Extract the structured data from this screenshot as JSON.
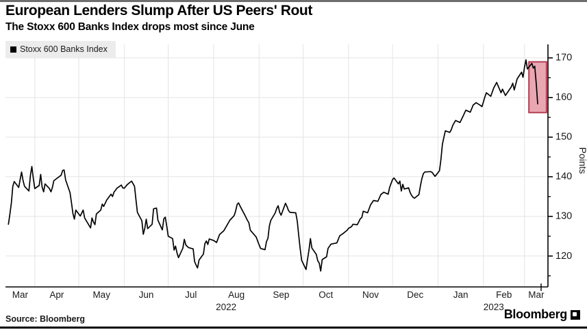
{
  "header": {
    "title": "European Lenders Slump After US Peers' Rout",
    "subtitle": "The Stoxx 600 Banks Index drops most since June"
  },
  "legend": {
    "label": "Stoxx 600 Banks Index"
  },
  "footer": {
    "source": "Source: Bloomberg",
    "brand": "Bloomberg"
  },
  "colors": {
    "line": "#000000",
    "grid": "#e4e4e4",
    "axis": "#000000",
    "highlight_fill": "#e9a7b2",
    "highlight_border": "#b43c52",
    "legend_bg": "#ececec"
  },
  "chart_data": {
    "type": "line",
    "title": "European Lenders Slump After US Peers' Rout",
    "subtitle": "The Stoxx 600 Banks Index drops most since June",
    "xlabel": "",
    "ylabel": "Points",
    "grid": true,
    "legend_position": "top-left",
    "y_axis": {
      "min": 112.2,
      "max": 173.4,
      "major_ticks": [
        120,
        130,
        140,
        150,
        160,
        170
      ],
      "minor_ticks": [
        115,
        125,
        135,
        145,
        155,
        165
      ]
    },
    "x_axis": {
      "start": "2022-03-12",
      "end": "2023-03-17",
      "months": [
        {
          "label": "Mar",
          "start": "2022-03-12"
        },
        {
          "label": "Apr",
          "start": "2022-04-01"
        },
        {
          "label": "May",
          "start": "2022-05-01"
        },
        {
          "label": "Jun",
          "start": "2022-06-01"
        },
        {
          "label": "Jul",
          "start": "2022-07-01"
        },
        {
          "label": "Aug",
          "start": "2022-08-01"
        },
        {
          "label": "Sep",
          "start": "2022-09-01"
        },
        {
          "label": "Oct",
          "start": "2022-10-01"
        },
        {
          "label": "Nov",
          "start": "2022-11-01"
        },
        {
          "label": "Dec",
          "start": "2022-12-01"
        },
        {
          "label": "Jan",
          "start": "2023-01-01"
        },
        {
          "label": "Feb",
          "start": "2023-02-01"
        },
        {
          "label": "Mar",
          "start": "2023-03-01"
        }
      ],
      "year_labels": [
        {
          "text": "2022",
          "month_index": 5
        },
        {
          "text": "2023",
          "month_index": 11
        }
      ]
    },
    "highlight_box": {
      "from": "2023-03-04",
      "to": "2023-03-16",
      "value_min": 156.2,
      "value_max": 169.0
    },
    "series": [
      {
        "name": "Stoxx 600 Banks Index",
        "color": "#000000",
        "points": [
          [
            "2022-03-14",
            128.0
          ],
          [
            "2022-03-15",
            130.5
          ],
          [
            "2022-03-16",
            133.4
          ],
          [
            "2022-03-17",
            137.6
          ],
          [
            "2022-03-18",
            138.8
          ],
          [
            "2022-03-21",
            137.3
          ],
          [
            "2022-03-22",
            139.3
          ],
          [
            "2022-03-23",
            141.2
          ],
          [
            "2022-03-24",
            139.0
          ],
          [
            "2022-03-25",
            137.6
          ],
          [
            "2022-03-28",
            136.4
          ],
          [
            "2022-03-29",
            140.3
          ],
          [
            "2022-03-30",
            142.6
          ],
          [
            "2022-03-31",
            139.5
          ],
          [
            "2022-04-01",
            137.0
          ],
          [
            "2022-04-04",
            137.8
          ],
          [
            "2022-04-05",
            140.6
          ],
          [
            "2022-04-06",
            137.4
          ],
          [
            "2022-04-07",
            136.2
          ],
          [
            "2022-04-08",
            138.2
          ],
          [
            "2022-04-11",
            137.0
          ],
          [
            "2022-04-12",
            136.2
          ],
          [
            "2022-04-13",
            137.3
          ],
          [
            "2022-04-14",
            139.0
          ],
          [
            "2022-04-19",
            140.4
          ],
          [
            "2022-04-20",
            141.6
          ],
          [
            "2022-04-21",
            141.7
          ],
          [
            "2022-04-22",
            139.2
          ],
          [
            "2022-04-25",
            136.0
          ],
          [
            "2022-04-26",
            133.5
          ],
          [
            "2022-04-27",
            130.7
          ],
          [
            "2022-04-28",
            129.3
          ],
          [
            "2022-04-29",
            131.6
          ],
          [
            "2022-05-02",
            130.1
          ],
          [
            "2022-05-04",
            131.6
          ],
          [
            "2022-05-05",
            129.6
          ],
          [
            "2022-05-09",
            127.1
          ],
          [
            "2022-05-10",
            129.6
          ],
          [
            "2022-05-11",
            128.6
          ],
          [
            "2022-05-12",
            127.9
          ],
          [
            "2022-05-13",
            130.6
          ],
          [
            "2022-05-16",
            131.6
          ],
          [
            "2022-05-17",
            133.1
          ],
          [
            "2022-05-18",
            132.5
          ],
          [
            "2022-05-20",
            134.1
          ],
          [
            "2022-05-23",
            135.6
          ],
          [
            "2022-05-24",
            135.0
          ],
          [
            "2022-05-25",
            136.1
          ],
          [
            "2022-05-27",
            137.1
          ],
          [
            "2022-05-30",
            137.9
          ],
          [
            "2022-05-31",
            137.2
          ],
          [
            "2022-06-01",
            137.1
          ],
          [
            "2022-06-03",
            138.0
          ],
          [
            "2022-06-06",
            138.9
          ],
          [
            "2022-06-08",
            137.6
          ],
          [
            "2022-06-09",
            134.2
          ],
          [
            "2022-06-10",
            131.0
          ],
          [
            "2022-06-13",
            128.9
          ],
          [
            "2022-06-14",
            125.5
          ],
          [
            "2022-06-15",
            127.0
          ],
          [
            "2022-06-16",
            129.3
          ],
          [
            "2022-06-17",
            126.9
          ],
          [
            "2022-06-20",
            128.0
          ],
          [
            "2022-06-21",
            131.9
          ],
          [
            "2022-06-23",
            132.1
          ],
          [
            "2022-06-24",
            129.0
          ],
          [
            "2022-06-27",
            126.6
          ],
          [
            "2022-06-28",
            129.4
          ],
          [
            "2022-06-29",
            129.8
          ],
          [
            "2022-06-30",
            127.5
          ],
          [
            "2022-07-01",
            125.0
          ],
          [
            "2022-07-04",
            124.4
          ],
          [
            "2022-07-05",
            121.5
          ],
          [
            "2022-07-06",
            122.5
          ],
          [
            "2022-07-07",
            120.8
          ],
          [
            "2022-07-08",
            119.6
          ],
          [
            "2022-07-11",
            122.0
          ],
          [
            "2022-07-12",
            124.2
          ],
          [
            "2022-07-13",
            122.8
          ],
          [
            "2022-07-14",
            122.4
          ],
          [
            "2022-07-15",
            122.1
          ],
          [
            "2022-07-18",
            121.8
          ],
          [
            "2022-07-19",
            118.6
          ],
          [
            "2022-07-20",
            117.7
          ],
          [
            "2022-07-21",
            117.0
          ],
          [
            "2022-07-22",
            119.0
          ],
          [
            "2022-07-25",
            120.5
          ],
          [
            "2022-07-26",
            123.1
          ],
          [
            "2022-07-27",
            123.8
          ],
          [
            "2022-07-28",
            122.9
          ],
          [
            "2022-07-29",
            124.3
          ],
          [
            "2022-08-01",
            123.9
          ],
          [
            "2022-08-03",
            123.4
          ],
          [
            "2022-08-05",
            125.4
          ],
          [
            "2022-08-08",
            126.4
          ],
          [
            "2022-08-10",
            127.7
          ],
          [
            "2022-08-12",
            129.0
          ],
          [
            "2022-08-15",
            130.2
          ],
          [
            "2022-08-16",
            131.4
          ],
          [
            "2022-08-17",
            133.0
          ],
          [
            "2022-08-18",
            133.4
          ],
          [
            "2022-08-19",
            132.6
          ],
          [
            "2022-08-22",
            130.5
          ],
          [
            "2022-08-24",
            129.0
          ],
          [
            "2022-08-25",
            128.4
          ],
          [
            "2022-08-26",
            126.5
          ],
          [
            "2022-08-30",
            124.8
          ],
          [
            "2022-09-01",
            122.8
          ],
          [
            "2022-09-02",
            121.9
          ],
          [
            "2022-09-05",
            121.6
          ],
          [
            "2022-09-06",
            123.6
          ],
          [
            "2022-09-07",
            124.5
          ],
          [
            "2022-09-08",
            127.6
          ],
          [
            "2022-09-09",
            129.0
          ],
          [
            "2022-09-12",
            130.9
          ],
          [
            "2022-09-13",
            132.0
          ],
          [
            "2022-09-14",
            132.7
          ],
          [
            "2022-09-15",
            131.0
          ],
          [
            "2022-09-16",
            130.3
          ],
          [
            "2022-09-19",
            133.3
          ],
          [
            "2022-09-20",
            132.5
          ],
          [
            "2022-09-21",
            131.5
          ],
          [
            "2022-09-22",
            131.0
          ],
          [
            "2022-09-26",
            130.9
          ],
          [
            "2022-09-27",
            128.8
          ],
          [
            "2022-09-28",
            125.2
          ],
          [
            "2022-09-29",
            121.9
          ],
          [
            "2022-09-30",
            118.9
          ],
          [
            "2022-10-03",
            116.6
          ],
          [
            "2022-10-04",
            119.2
          ],
          [
            "2022-10-05",
            121.5
          ],
          [
            "2022-10-06",
            124.4
          ],
          [
            "2022-10-07",
            122.0
          ],
          [
            "2022-10-10",
            120.4
          ],
          [
            "2022-10-11",
            118.8
          ],
          [
            "2022-10-12",
            118.2
          ],
          [
            "2022-10-13",
            116.2
          ],
          [
            "2022-10-14",
            119.1
          ],
          [
            "2022-10-17",
            119.8
          ],
          [
            "2022-10-18",
            121.9
          ],
          [
            "2022-10-20",
            123.0
          ],
          [
            "2022-10-24",
            123.3
          ],
          [
            "2022-10-26",
            125.1
          ],
          [
            "2022-10-28",
            125.6
          ],
          [
            "2022-10-31",
            126.5
          ],
          [
            "2022-11-01",
            127.0
          ],
          [
            "2022-11-03",
            127.4
          ],
          [
            "2022-11-04",
            128.0
          ],
          [
            "2022-11-07",
            127.9
          ],
          [
            "2022-11-09",
            129.4
          ],
          [
            "2022-11-10",
            129.7
          ],
          [
            "2022-11-11",
            131.3
          ],
          [
            "2022-11-14",
            130.9
          ],
          [
            "2022-11-16",
            132.9
          ],
          [
            "2022-11-18",
            134.0
          ],
          [
            "2022-11-21",
            133.8
          ],
          [
            "2022-11-23",
            135.5
          ],
          [
            "2022-11-25",
            136.1
          ],
          [
            "2022-11-28",
            135.6
          ],
          [
            "2022-11-29",
            137.3
          ],
          [
            "2022-12-01",
            139.3
          ],
          [
            "2022-12-02",
            139.7
          ],
          [
            "2022-12-05",
            138.2
          ],
          [
            "2022-12-06",
            138.9
          ],
          [
            "2022-12-07",
            136.4
          ],
          [
            "2022-12-08",
            138.1
          ],
          [
            "2022-12-09",
            136.9
          ],
          [
            "2022-12-12",
            137.2
          ],
          [
            "2022-12-13",
            136.0
          ],
          [
            "2022-12-14",
            135.3
          ],
          [
            "2022-12-15",
            134.8
          ],
          [
            "2022-12-16",
            134.6
          ],
          [
            "2022-12-19",
            135.5
          ],
          [
            "2022-12-20",
            137.7
          ],
          [
            "2022-12-21",
            139.5
          ],
          [
            "2022-12-22",
            140.8
          ],
          [
            "2022-12-23",
            141.2
          ],
          [
            "2022-12-27",
            141.3
          ],
          [
            "2022-12-28",
            141.1
          ],
          [
            "2022-12-29",
            140.6
          ],
          [
            "2022-12-30",
            140.1
          ],
          [
            "2023-01-02",
            141.5
          ],
          [
            "2023-01-03",
            144.3
          ],
          [
            "2023-01-04",
            148.2
          ],
          [
            "2023-01-05",
            149.9
          ],
          [
            "2023-01-06",
            151.6
          ],
          [
            "2023-01-09",
            151.2
          ],
          [
            "2023-01-10",
            151.8
          ],
          [
            "2023-01-11",
            152.9
          ],
          [
            "2023-01-12",
            153.6
          ],
          [
            "2023-01-13",
            154.2
          ],
          [
            "2023-01-16",
            153.7
          ],
          [
            "2023-01-18",
            155.2
          ],
          [
            "2023-01-20",
            156.8
          ],
          [
            "2023-01-23",
            156.3
          ],
          [
            "2023-01-25",
            158.1
          ],
          [
            "2023-01-27",
            158.7
          ],
          [
            "2023-01-30",
            158.0
          ],
          [
            "2023-01-31",
            157.7
          ],
          [
            "2023-02-02",
            160.2
          ],
          [
            "2023-02-03",
            161.2
          ],
          [
            "2023-02-06",
            160.3
          ],
          [
            "2023-02-08",
            162.4
          ],
          [
            "2023-02-10",
            163.8
          ],
          [
            "2023-02-13",
            161.2
          ],
          [
            "2023-02-14",
            162.1
          ],
          [
            "2023-02-16",
            160.5
          ],
          [
            "2023-02-20",
            162.7
          ],
          [
            "2023-02-21",
            163.6
          ],
          [
            "2023-02-22",
            161.9
          ],
          [
            "2023-02-24",
            164.7
          ],
          [
            "2023-02-27",
            166.4
          ],
          [
            "2023-02-28",
            165.1
          ],
          [
            "2023-03-01",
            167.7
          ],
          [
            "2023-03-02",
            169.5
          ],
          [
            "2023-03-03",
            167.2
          ],
          [
            "2023-03-06",
            168.6
          ],
          [
            "2023-03-07",
            167.4
          ],
          [
            "2023-03-08",
            167.9
          ],
          [
            "2023-03-09",
            163.5
          ],
          [
            "2023-03-10",
            158.4
          ]
        ]
      }
    ]
  }
}
